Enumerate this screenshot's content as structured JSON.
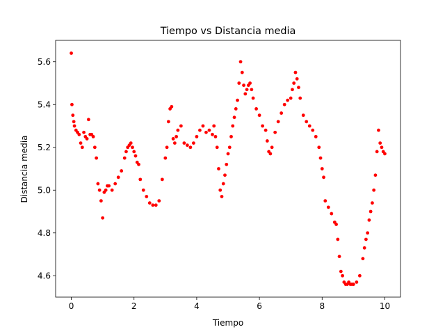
{
  "chart_data": {
    "type": "scatter",
    "title": "Tiempo vs Distancia media",
    "xlabel": "Tiempo",
    "ylabel": "Distancia media",
    "xlim": [
      -0.5,
      10.5
    ],
    "ylim": [
      4.5,
      5.7
    ],
    "xticks": [
      0,
      2,
      4,
      6,
      8,
      10
    ],
    "xtick_labels": [
      "0",
      "2",
      "4",
      "6",
      "8",
      "10"
    ],
    "yticks": [
      4.6,
      4.8,
      5.0,
      5.2,
      5.4,
      5.6
    ],
    "ytick_labels": [
      "4.6",
      "4.8",
      "5.0",
      "5.2",
      "5.4",
      "5.6"
    ],
    "grid": false,
    "marker_color": "#ff0000",
    "series": [
      {
        "x": [
          0.0,
          0.02,
          0.05,
          0.08,
          0.1,
          0.15,
          0.2,
          0.25,
          0.3,
          0.35,
          0.4,
          0.45,
          0.5,
          0.55,
          0.6,
          0.65,
          0.7,
          0.75,
          0.8,
          0.85,
          0.9,
          0.95,
          1.0,
          1.05,
          1.1,
          1.15,
          1.2,
          1.3,
          1.4,
          1.5,
          1.6,
          1.7,
          1.75,
          1.8,
          1.85,
          1.9,
          1.95,
          2.0,
          2.05,
          2.1,
          2.15,
          2.2,
          2.3,
          2.4,
          2.5,
          2.6,
          2.7,
          2.8,
          2.9,
          3.0,
          3.05,
          3.1,
          3.15,
          3.2,
          3.25,
          3.3,
          3.35,
          3.4,
          3.5,
          3.6,
          3.7,
          3.8,
          3.9,
          4.0,
          4.1,
          4.2,
          4.3,
          4.4,
          4.5,
          4.55,
          4.6,
          4.65,
          4.7,
          4.75,
          4.8,
          4.85,
          4.9,
          4.95,
          5.0,
          5.05,
          5.1,
          5.15,
          5.2,
          5.25,
          5.3,
          5.35,
          5.4,
          5.45,
          5.5,
          5.55,
          5.6,
          5.65,
          5.7,
          5.75,
          5.8,
          5.9,
          6.0,
          6.1,
          6.2,
          6.25,
          6.3,
          6.35,
          6.4,
          6.5,
          6.6,
          6.7,
          6.8,
          6.9,
          7.0,
          7.05,
          7.1,
          7.15,
          7.2,
          7.25,
          7.3,
          7.4,
          7.5,
          7.6,
          7.7,
          7.8,
          7.9,
          7.95,
          8.0,
          8.05,
          8.1,
          8.2,
          8.3,
          8.4,
          8.45,
          8.5,
          8.55,
          8.6,
          8.65,
          8.7,
          8.75,
          8.8,
          8.85,
          8.9,
          8.95,
          9.0,
          9.1,
          9.2,
          9.3,
          9.35,
          9.4,
          9.45,
          9.5,
          9.55,
          9.6,
          9.65,
          9.7,
          9.75,
          9.8,
          9.85,
          9.9,
          9.95,
          10.0
        ],
        "y": [
          5.64,
          5.4,
          5.35,
          5.32,
          5.3,
          5.28,
          5.27,
          5.26,
          5.22,
          5.2,
          5.27,
          5.25,
          5.24,
          5.33,
          5.26,
          5.26,
          5.25,
          5.2,
          5.15,
          5.03,
          5.0,
          4.95,
          4.87,
          4.99,
          5.0,
          5.02,
          5.02,
          5.0,
          5.03,
          5.06,
          5.09,
          5.15,
          5.18,
          5.2,
          5.21,
          5.22,
          5.2,
          5.18,
          5.16,
          5.13,
          5.12,
          5.05,
          5.0,
          4.97,
          4.94,
          4.93,
          4.93,
          4.95,
          5.05,
          5.15,
          5.2,
          5.32,
          5.38,
          5.39,
          5.24,
          5.22,
          5.25,
          5.28,
          5.3,
          5.22,
          5.21,
          5.2,
          5.22,
          5.25,
          5.28,
          5.3,
          5.27,
          5.28,
          5.26,
          5.3,
          5.25,
          5.2,
          5.1,
          5.0,
          4.97,
          5.03,
          5.07,
          5.12,
          5.17,
          5.2,
          5.25,
          5.3,
          5.34,
          5.38,
          5.42,
          5.5,
          5.6,
          5.55,
          5.49,
          5.45,
          5.47,
          5.49,
          5.5,
          5.47,
          5.43,
          5.38,
          5.35,
          5.3,
          5.28,
          5.23,
          5.18,
          5.17,
          5.2,
          5.27,
          5.32,
          5.36,
          5.4,
          5.42,
          5.43,
          5.47,
          5.5,
          5.55,
          5.52,
          5.48,
          5.43,
          5.35,
          5.32,
          5.3,
          5.28,
          5.25,
          5.2,
          5.15,
          5.1,
          5.06,
          4.95,
          4.92,
          4.89,
          4.85,
          4.84,
          4.77,
          4.69,
          4.62,
          4.6,
          4.57,
          4.56,
          4.56,
          4.57,
          4.56,
          4.56,
          4.56,
          4.57,
          4.6,
          4.68,
          4.73,
          4.77,
          4.8,
          4.86,
          4.9,
          4.94,
          5.0,
          5.07,
          5.18,
          5.28,
          5.22,
          5.2,
          5.18,
          5.17
        ]
      }
    ]
  }
}
